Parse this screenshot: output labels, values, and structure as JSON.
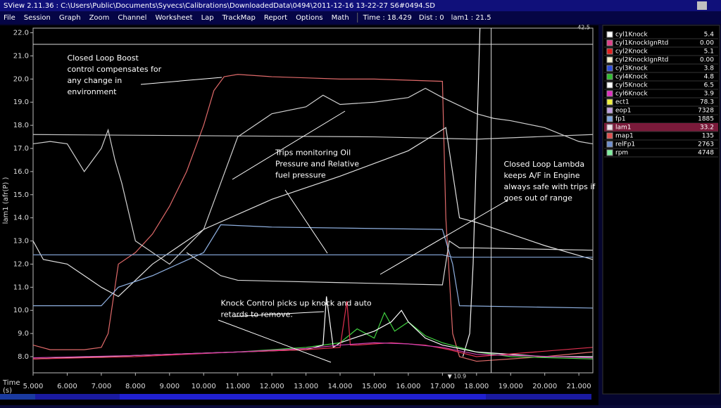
{
  "window": {
    "title": "SView 2.11.36 :  C:\\Users\\Public\\Documents\\Syvecs\\Calibrations\\DownloadedData\\0494\\2011-12-16 13-22-27 S6#0494.SD"
  },
  "menu": [
    "File",
    "Session",
    "Graph",
    "Zoom",
    "Channel",
    "Worksheet",
    "Lap",
    "TrackMap",
    "Report",
    "Options",
    "Math"
  ],
  "status": [
    "Time : 18.429",
    "Dist : 0",
    "lam1 : 21.5"
  ],
  "chart": {
    "type": "line",
    "ylabel": "lam1 (afr(P) )",
    "xlabel": [
      "Time",
      "(s)"
    ],
    "xlim": [
      5,
      21.41
    ],
    "ylim": [
      7.3,
      22.2
    ],
    "xticks": [
      {
        "value": 5,
        "label": "5.000"
      },
      {
        "value": 6,
        "label": "6.000"
      },
      {
        "value": 7,
        "label": "7.000"
      },
      {
        "value": 8,
        "label": "8.000"
      },
      {
        "value": 9,
        "label": "9.000"
      },
      {
        "value": 10,
        "label": "10.000"
      },
      {
        "value": 11,
        "label": "11.000"
      },
      {
        "value": 12,
        "label": "12.000"
      },
      {
        "value": 13,
        "label": "13.000"
      },
      {
        "value": 14,
        "label": "14.000"
      },
      {
        "value": 15,
        "label": "15.000"
      },
      {
        "value": 16,
        "label": "16.000"
      },
      {
        "value": 17,
        "label": "17.000"
      },
      {
        "value": 18,
        "label": "18.000"
      },
      {
        "value": 19,
        "label": "19.000"
      },
      {
        "value": 20,
        "label": "20.000"
      },
      {
        "value": 21,
        "label": "21.000"
      }
    ],
    "yticks": [
      {
        "value": 8,
        "label": "8.0"
      },
      {
        "value": 9,
        "label": "9.0"
      },
      {
        "value": 10,
        "label": "10.0"
      },
      {
        "value": 11,
        "label": "11.0"
      },
      {
        "value": 12,
        "label": "12.0"
      },
      {
        "value": 13,
        "label": "13.0"
      },
      {
        "value": 14,
        "label": "14.0"
      },
      {
        "value": 15,
        "label": "15.0"
      },
      {
        "value": 16,
        "label": "16.0"
      },
      {
        "value": 17,
        "label": "17.0"
      },
      {
        "value": 18,
        "label": "18.0"
      },
      {
        "value": 19,
        "label": "19.0"
      },
      {
        "value": 20,
        "label": "20.0"
      },
      {
        "value": 21,
        "label": "21.0"
      },
      {
        "value": 22,
        "label": "22.0"
      }
    ],
    "cursor_x": 18.429,
    "cursor_y": 21.5,
    "top_marker": "42.5",
    "bottom_marker": {
      "x": 17.15,
      "label": "▼ 10.9"
    },
    "annotations": [
      {
        "lines": [
          "Closed Loop Boost",
          "control compensates for",
          "any change in",
          "environment"
        ],
        "x": 6,
        "y": 20.9
      },
      {
        "lines": [
          "Trips monitoring Oil",
          "Pressure and Relative",
          "fuel pressure"
        ],
        "x": 12.1,
        "y": 16.8
      },
      {
        "lines": [
          "Closed Loop Lambda",
          "keeps A/F in Engine",
          "always safe with trips if",
          "goes out of range"
        ],
        "x": 18.8,
        "y": 16.3
      },
      {
        "lines": [
          "Knock Control picks up knock and auto",
          "retards to remove."
        ],
        "x": 10.5,
        "y": 10.3
      }
    ],
    "series": [
      {
        "color": "#e06a6a",
        "x": [
          5,
          5.5,
          6.5,
          7,
          7.2,
          7.5,
          8,
          8.5,
          9,
          9.5,
          10,
          10.3,
          10.6,
          11,
          12,
          13,
          14,
          15,
          16,
          17,
          17.1,
          17.3,
          17.5,
          18,
          19,
          20,
          21.4
        ],
        "values": [
          8.5,
          8.3,
          8.3,
          8.4,
          9,
          12,
          12.5,
          13.3,
          14.5,
          16,
          18,
          19.5,
          20.1,
          20.2,
          20.1,
          20.05,
          20,
          20,
          19.95,
          19.9,
          14,
          9,
          8,
          7.8,
          7.9,
          8,
          8.2
        ]
      },
      {
        "color": "#d0d0d0",
        "x": [
          5,
          5.5,
          6,
          6.5,
          7,
          7.2,
          7.4,
          7.6,
          8,
          9,
          10,
          11,
          12,
          13,
          13.5,
          14,
          15,
          16,
          16.5,
          17,
          18,
          18.5,
          19,
          20,
          21,
          21.4
        ],
        "values": [
          17.2,
          17.3,
          17.2,
          16,
          17,
          17.8,
          16.5,
          15.5,
          13,
          12,
          13.5,
          17.5,
          18.5,
          18.8,
          19.3,
          18.9,
          19,
          19.2,
          19.6,
          19.2,
          18.5,
          18.3,
          18.2,
          17.9,
          17.3,
          17.2
        ]
      },
      {
        "color": "#c8c8c8",
        "x": [
          5,
          10,
          15,
          18,
          21.4
        ],
        "values": [
          17.6,
          17.55,
          17.5,
          17.4,
          17.6
        ]
      },
      {
        "color": "#e0e0e0",
        "x": [
          5,
          5.3,
          6,
          7,
          7.5,
          8.5,
          10,
          12,
          14,
          16,
          17.1,
          17.5,
          18,
          19,
          20,
          21.4
        ],
        "values": [
          13,
          12.2,
          12,
          11,
          10.6,
          12,
          13.5,
          14.8,
          15.8,
          16.9,
          17.9,
          14,
          13.8,
          13.3,
          12.8,
          12.2
        ]
      },
      {
        "color": "#8fb0e0",
        "x": [
          5,
          7,
          7.5,
          8.5,
          10,
          10.5,
          12,
          17,
          17.3,
          17.5,
          21.4
        ],
        "values": [
          10.2,
          10.2,
          11,
          11.5,
          12.5,
          13.7,
          13.6,
          13.5,
          12,
          10.2,
          10.1
        ]
      },
      {
        "color": "#7f9fcf",
        "x": [
          5,
          10,
          17,
          17.3,
          21.4
        ],
        "values": [
          12.4,
          12.4,
          12.4,
          12.3,
          12.3
        ]
      },
      {
        "color": "#d8d8d8",
        "x": [
          9.5,
          10,
          10.5,
          11,
          14,
          17,
          17.2,
          17.5,
          18,
          21.4
        ],
        "values": [
          12.5,
          12,
          11.5,
          11.3,
          11.2,
          11.1,
          13,
          12.7,
          12.7,
          12.6
        ]
      },
      {
        "color": "#f0f0f0",
        "x": [
          17.6,
          17.8,
          17.9,
          18,
          18.1
        ],
        "values": [
          8,
          9,
          12,
          17,
          22.2
        ]
      },
      {
        "color": "#40d040",
        "x": [
          5,
          7,
          9,
          11,
          12,
          13,
          14,
          14.5,
          15,
          15.3,
          15.6,
          16,
          16.5,
          17,
          18,
          19,
          21.4
        ],
        "values": [
          7.9,
          8,
          8.1,
          8.2,
          8.3,
          8.4,
          8.6,
          9.2,
          8.8,
          9.9,
          9.1,
          9.5,
          8.9,
          8.6,
          8.2,
          8,
          7.9
        ]
      },
      {
        "color": "#ffffff",
        "x": [
          5,
          7,
          9,
          11,
          13,
          13.5,
          13.6,
          13.8,
          14,
          15,
          15.5,
          15.8,
          16,
          16.5,
          17,
          18,
          20,
          21.4
        ],
        "values": [
          7.9,
          8,
          8.1,
          8.2,
          8.3,
          8.5,
          10.6,
          8.4,
          8.6,
          9.1,
          9.5,
          10,
          9.5,
          8.8,
          8.5,
          8.2,
          8,
          8
        ]
      },
      {
        "color": "#e03050",
        "x": [
          5,
          8,
          11,
          13,
          14,
          14.2,
          14.3,
          14.5,
          15.5,
          16.5,
          17.2,
          18,
          21.4
        ],
        "values": [
          7.9,
          8,
          8.2,
          8.3,
          8.4,
          10.4,
          8.5,
          8.5,
          8.6,
          8.5,
          8.3,
          8,
          8.4
        ]
      },
      {
        "color": "#d040b0",
        "x": [
          5,
          8,
          11,
          13,
          14,
          15,
          16,
          17,
          18,
          21.4
        ],
        "values": [
          7.95,
          8.05,
          8.2,
          8.35,
          8.5,
          8.6,
          8.55,
          8.4,
          8.1,
          7.95
        ]
      }
    ]
  },
  "channels": {
    "selected": 11,
    "rows": [
      {
        "name": "cyl1Knock",
        "value": "5.4",
        "color": "#ffffff"
      },
      {
        "name": "cyl1KnockIgnRtd",
        "value": "0.00",
        "color": "#e0408a"
      },
      {
        "name": "cyl2Knock",
        "value": "5.1",
        "color": "#e02020"
      },
      {
        "name": "cyl2KnockIgnRtd",
        "value": "0.00",
        "color": "#f4f0d0"
      },
      {
        "name": "cyl3Knock",
        "value": "3.8",
        "color": "#3050e0"
      },
      {
        "name": "cyl4Knock",
        "value": "4.8",
        "color": "#30c030"
      },
      {
        "name": "cyl5Knock",
        "value": "6.5",
        "color": "#ffffff"
      },
      {
        "name": "cyl6Knock",
        "value": "3.9",
        "color": "#e030c0"
      },
      {
        "name": "ect1",
        "value": "78.3",
        "color": "#f0f040"
      },
      {
        "name": "eop1",
        "value": "7328",
        "color": "#c0a0e0"
      },
      {
        "name": "fp1",
        "value": "1885",
        "color": "#80a8e0"
      },
      {
        "name": "lam1",
        "value": "33.2",
        "color": "#f0e0e8"
      },
      {
        "name": "map1",
        "value": "135",
        "color": "#e05050"
      },
      {
        "name": "relFp1",
        "value": "2763",
        "color": "#7090d0"
      },
      {
        "name": "rpm",
        "value": "4748",
        "color": "#80f0a0"
      }
    ]
  }
}
